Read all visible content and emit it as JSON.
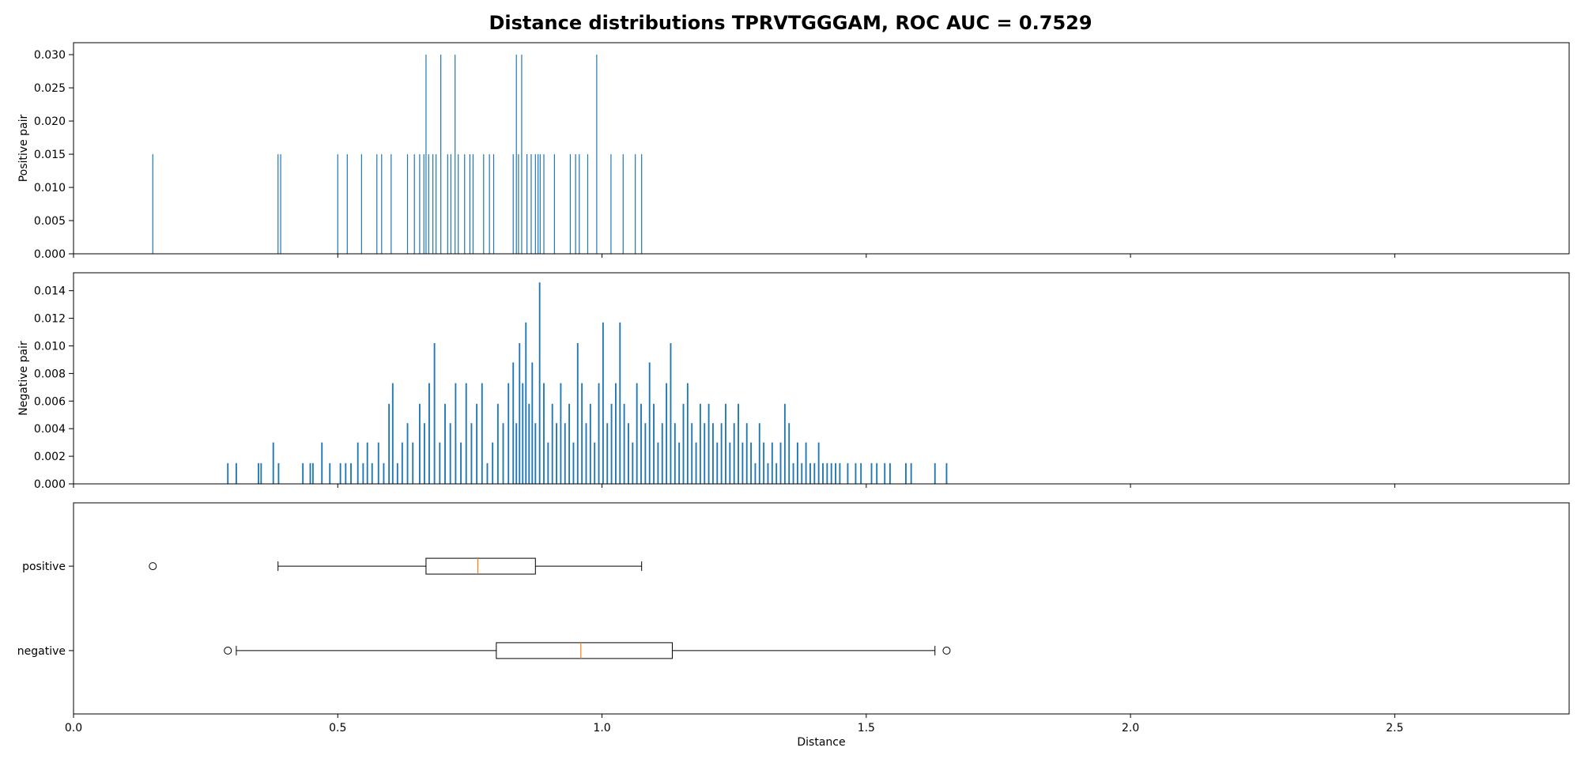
{
  "chart_data": {
    "title": "Distance distributions TPRVTGGGAM, ROC AUC = 0.7529",
    "xlabel": "Distance",
    "xlim": [
      0.0,
      2.83
    ],
    "x_ticks": [
      0.0,
      0.5,
      1.0,
      1.5,
      2.0,
      2.5
    ],
    "x_tick_labels": [
      "0.0",
      "0.5",
      "1.0",
      "1.5",
      "2.0",
      "2.5"
    ],
    "colors": {
      "bars": "#1f77b4",
      "median": "#ff7f0e",
      "frame": "#000000"
    },
    "panels": [
      {
        "type": "bar",
        "ylabel": "Positive pair",
        "ylim": [
          0,
          0.0318
        ],
        "y_ticks": [
          0.0,
          0.005,
          0.01,
          0.015,
          0.02,
          0.025,
          0.03
        ],
        "y_tick_labels": [
          "0.000",
          "0.005",
          "0.010",
          "0.015",
          "0.020",
          "0.025",
          "0.030"
        ],
        "bin_width": 0.0018,
        "x": [
          0.15,
          0.387,
          0.392,
          0.5,
          0.518,
          0.545,
          0.574,
          0.583,
          0.601,
          0.632,
          0.645,
          0.655,
          0.663,
          0.667,
          0.672,
          0.68,
          0.686,
          0.695,
          0.708,
          0.714,
          0.722,
          0.728,
          0.74,
          0.75,
          0.756,
          0.776,
          0.787,
          0.795,
          0.832,
          0.838,
          0.842,
          0.848,
          0.858,
          0.866,
          0.874,
          0.879,
          0.883,
          0.89,
          0.91,
          0.94,
          0.95,
          0.957,
          0.973,
          0.99,
          1.017,
          1.04,
          1.063,
          1.075
        ],
        "values": [
          0.015,
          0.015,
          0.015,
          0.015,
          0.015,
          0.015,
          0.015,
          0.015,
          0.015,
          0.015,
          0.015,
          0.015,
          0.015,
          0.03,
          0.015,
          0.015,
          0.015,
          0.03,
          0.015,
          0.015,
          0.03,
          0.015,
          0.015,
          0.015,
          0.015,
          0.015,
          0.015,
          0.015,
          0.015,
          0.03,
          0.015,
          0.03,
          0.015,
          0.015,
          0.015,
          0.015,
          0.015,
          0.015,
          0.015,
          0.015,
          0.015,
          0.015,
          0.015,
          0.03,
          0.015,
          0.015,
          0.015,
          0.015
        ]
      },
      {
        "type": "bar",
        "ylabel": "Negative pair",
        "ylim": [
          0,
          0.0153
        ],
        "y_ticks": [
          0.0,
          0.002,
          0.004,
          0.006,
          0.008,
          0.01,
          0.012,
          0.014
        ],
        "y_tick_labels": [
          "0.000",
          "0.002",
          "0.004",
          "0.006",
          "0.008",
          "0.010",
          "0.012",
          "0.014"
        ],
        "bin_width": 0.0028,
        "x": [
          0.292,
          0.308,
          0.35,
          0.355,
          0.378,
          0.388,
          0.434,
          0.448,
          0.453,
          0.47,
          0.485,
          0.505,
          0.515,
          0.525,
          0.538,
          0.548,
          0.556,
          0.565,
          0.577,
          0.587,
          0.597,
          0.604,
          0.613,
          0.622,
          0.632,
          0.642,
          0.655,
          0.664,
          0.673,
          0.683,
          0.693,
          0.703,
          0.713,
          0.723,
          0.733,
          0.743,
          0.753,
          0.763,
          0.773,
          0.783,
          0.793,
          0.803,
          0.813,
          0.823,
          0.832,
          0.838,
          0.844,
          0.85,
          0.856,
          0.862,
          0.868,
          0.874,
          0.882,
          0.89,
          0.898,
          0.906,
          0.914,
          0.922,
          0.93,
          0.938,
          0.946,
          0.954,
          0.962,
          0.97,
          0.978,
          0.986,
          0.994,
          1.002,
          1.01,
          1.018,
          1.026,
          1.034,
          1.042,
          1.05,
          1.058,
          1.066,
          1.074,
          1.082,
          1.09,
          1.098,
          1.106,
          1.114,
          1.122,
          1.13,
          1.138,
          1.146,
          1.154,
          1.162,
          1.17,
          1.178,
          1.186,
          1.194,
          1.202,
          1.21,
          1.218,
          1.226,
          1.234,
          1.242,
          1.25,
          1.258,
          1.266,
          1.274,
          1.282,
          1.29,
          1.298,
          1.306,
          1.314,
          1.322,
          1.33,
          1.338,
          1.346,
          1.354,
          1.362,
          1.37,
          1.378,
          1.386,
          1.394,
          1.402,
          1.41,
          1.418,
          1.426,
          1.434,
          1.442,
          1.45,
          1.465,
          1.48,
          1.49,
          1.51,
          1.52,
          1.535,
          1.545,
          1.575,
          1.585,
          1.63,
          1.652
        ],
        "values": [
          0.0015,
          0.0015,
          0.0015,
          0.0015,
          0.003,
          0.0015,
          0.0015,
          0.0015,
          0.0015,
          0.003,
          0.0015,
          0.0015,
          0.0015,
          0.0015,
          0.003,
          0.0015,
          0.003,
          0.0015,
          0.003,
          0.0015,
          0.0058,
          0.0073,
          0.0015,
          0.003,
          0.0044,
          0.003,
          0.0058,
          0.0044,
          0.0073,
          0.0102,
          0.003,
          0.0058,
          0.0044,
          0.0073,
          0.003,
          0.0073,
          0.0044,
          0.0058,
          0.0073,
          0.0015,
          0.003,
          0.0058,
          0.0044,
          0.0073,
          0.0088,
          0.0044,
          0.0102,
          0.0073,
          0.0117,
          0.0058,
          0.0088,
          0.0044,
          0.0146,
          0.0073,
          0.003,
          0.0058,
          0.0044,
          0.0073,
          0.0044,
          0.0058,
          0.003,
          0.0102,
          0.0073,
          0.0044,
          0.0058,
          0.003,
          0.0073,
          0.0117,
          0.0044,
          0.0058,
          0.0073,
          0.0117,
          0.0058,
          0.0044,
          0.003,
          0.0073,
          0.0058,
          0.0044,
          0.0088,
          0.0058,
          0.003,
          0.0044,
          0.0073,
          0.0102,
          0.0044,
          0.003,
          0.0058,
          0.0073,
          0.0044,
          0.003,
          0.0058,
          0.0044,
          0.0058,
          0.0044,
          0.003,
          0.0044,
          0.0058,
          0.003,
          0.0044,
          0.0058,
          0.003,
          0.0044,
          0.003,
          0.0015,
          0.0044,
          0.003,
          0.0015,
          0.003,
          0.0015,
          0.003,
          0.0058,
          0.0044,
          0.0015,
          0.003,
          0.0015,
          0.003,
          0.0015,
          0.0015,
          0.003,
          0.0015,
          0.0015,
          0.0015,
          0.0015,
          0.0015,
          0.0015,
          0.0015,
          0.0015,
          0.0015,
          0.0015,
          0.0015,
          0.0015,
          0.0015,
          0.0015,
          0.0015,
          0.0015
        ]
      },
      {
        "type": "boxplot",
        "categories": [
          "positive",
          "negative"
        ],
        "boxes": [
          {
            "whisker_low": 0.387,
            "q1": 0.667,
            "median": 0.765,
            "q3": 0.874,
            "whisker_high": 1.075,
            "outliers": [
              0.15
            ]
          },
          {
            "whisker_low": 0.308,
            "q1": 0.8,
            "median": 0.96,
            "q3": 1.133,
            "whisker_high": 1.63,
            "outliers": [
              0.292,
              1.652
            ]
          }
        ]
      }
    ]
  }
}
